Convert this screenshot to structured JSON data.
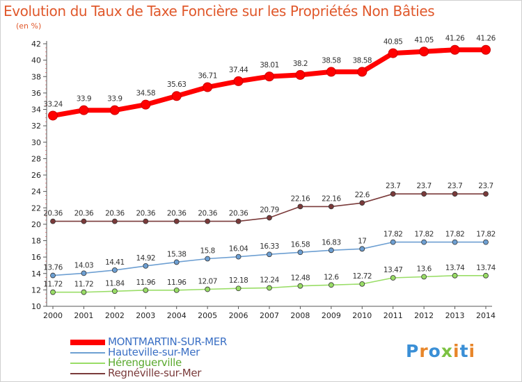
{
  "title": "Evolution du Taux de Taxe Foncière sur les Propriétés Non Bâties",
  "unit": "(en %)",
  "logo": "Proxiti",
  "chart_data": {
    "type": "line",
    "title": "Evolution du Taux de Taxe Foncière sur les Propriétés Non Bâties",
    "ylabel": "(en %)",
    "x": [
      "2000",
      "2001",
      "2002",
      "2003",
      "2004",
      "2005",
      "2006",
      "2007",
      "2008",
      "2009",
      "2010",
      "2011",
      "2012",
      "2013",
      "2014"
    ],
    "y_ticks": [
      10,
      12,
      14,
      16,
      18,
      20,
      22,
      24,
      26,
      28,
      30,
      32,
      34,
      36,
      38,
      40,
      42
    ],
    "ylim": [
      10,
      42
    ],
    "grid": false,
    "legend_position": "bottom-left",
    "series": [
      {
        "name": "MONTMARTIN-SUR-MER",
        "color": "#ff0000",
        "values": [
          33.24,
          33.9,
          33.9,
          34.58,
          35.63,
          36.71,
          37.44,
          38.01,
          38.2,
          38.58,
          38.58,
          40.85,
          41.05,
          41.26,
          41.26
        ],
        "labels": [
          "33.24",
          "33.9",
          "33.9",
          "34.58",
          "35.63",
          "36.71",
          "37.44",
          "38.01",
          "38.2",
          "38.58",
          "38.58",
          "40.85",
          "41.05",
          "41.26",
          "41.26"
        ]
      },
      {
        "name": "Hauteville-sur-Mer",
        "color": "#6d9fd2",
        "values": [
          13.76,
          14.03,
          14.41,
          14.92,
          15.38,
          15.8,
          16.04,
          16.33,
          16.58,
          16.83,
          17,
          17.82,
          17.82,
          17.82,
          17.82
        ],
        "labels": [
          "13.76",
          "14.03",
          "14.41",
          "14.92",
          "15.38",
          "15.8",
          "16.04",
          "16.33",
          "16.58",
          "16.83",
          "17",
          "17.82",
          "17.82",
          "17.82",
          "17.82"
        ]
      },
      {
        "name": "Hérenguerville",
        "color": "#99dd66",
        "values": [
          11.72,
          11.72,
          11.84,
          11.96,
          11.96,
          12.07,
          12.18,
          12.24,
          12.48,
          12.6,
          12.72,
          13.47,
          13.6,
          13.74,
          13.74
        ],
        "labels": [
          "11.72",
          "11.72",
          "11.84",
          "11.96",
          "11.96",
          "12.07",
          "12.18",
          "12.24",
          "12.48",
          "12.6",
          "12.72",
          "13.47",
          "13.6",
          "13.74",
          "13.74"
        ]
      },
      {
        "name": "Regnéville-sur-Mer",
        "color": "#7a3a3a",
        "values": [
          20.36,
          20.36,
          20.36,
          20.36,
          20.36,
          20.36,
          20.36,
          20.79,
          22.16,
          22.16,
          22.6,
          23.7,
          23.7,
          23.7,
          23.7
        ],
        "labels": [
          "20.36",
          "20.36",
          "20.36",
          "20.36",
          "20.36",
          "20.36",
          "20.36",
          "20.79",
          "22.16",
          "22.16",
          "22.6",
          "23.7",
          "23.7",
          "23.7",
          "23.7"
        ]
      }
    ]
  }
}
